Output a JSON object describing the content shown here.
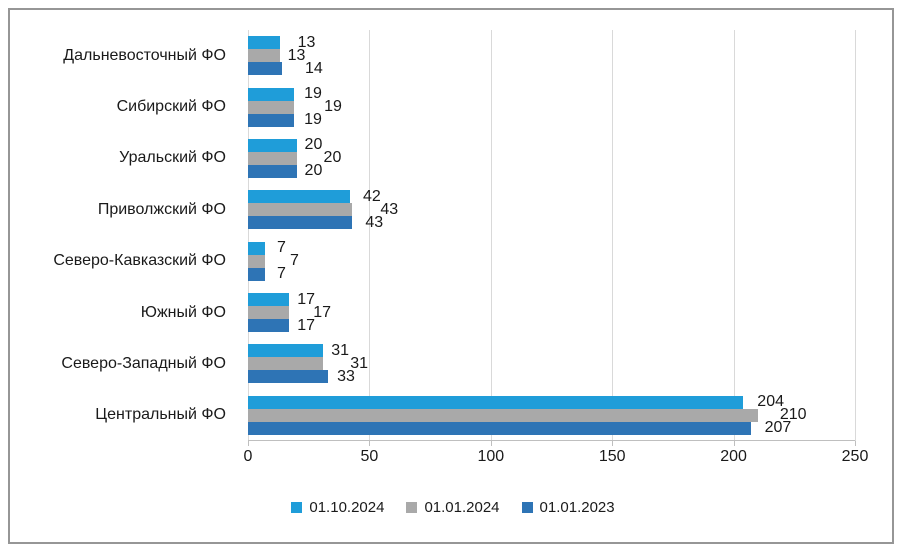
{
  "chart_data": {
    "type": "bar",
    "orientation": "horizontal",
    "title": "",
    "categories": [
      "Дальневосточный ФО",
      "Сибирский ФО",
      "Уральский ФО",
      "Приволжский ФО",
      "Северо-Кавказский ФО",
      "Южный ФО",
      "Северо-Западный ФО",
      "Центральный ФО"
    ],
    "series": [
      {
        "name": "01.10.2024",
        "color": "#1F9DD9",
        "values": [
          13,
          19,
          20,
          42,
          7,
          17,
          31,
          204
        ]
      },
      {
        "name": "01.01.2024",
        "color": "#A9A9A9",
        "values": [
          13,
          19,
          20,
          43,
          7,
          17,
          31,
          210
        ]
      },
      {
        "name": "01.01.2023",
        "color": "#2E74B5",
        "values": [
          14,
          19,
          20,
          43,
          7,
          17,
          33,
          207
        ]
      }
    ],
    "xlim": [
      0,
      250
    ],
    "x_ticks": [
      "0",
      "50",
      "100",
      "150",
      "200",
      "250"
    ],
    "grid": "vertical-gridlines",
    "legend_position": "bottom-center",
    "value_labels": "outside-end",
    "label_dx": [
      [
        18,
        8,
        23
      ],
      [
        10,
        30,
        10
      ],
      [
        8,
        27,
        8
      ],
      [
        13,
        28,
        13
      ],
      [
        12,
        25,
        12
      ],
      [
        8,
        24,
        8
      ],
      [
        8,
        27,
        9
      ],
      [
        14,
        22,
        14
      ]
    ]
  },
  "styles": {
    "background": "#FFFFFF",
    "border_color": "#969696",
    "gridline_color": "#D9D9D9",
    "axis_color": "#BFBFBF",
    "text_color": "#1A1A1A"
  }
}
